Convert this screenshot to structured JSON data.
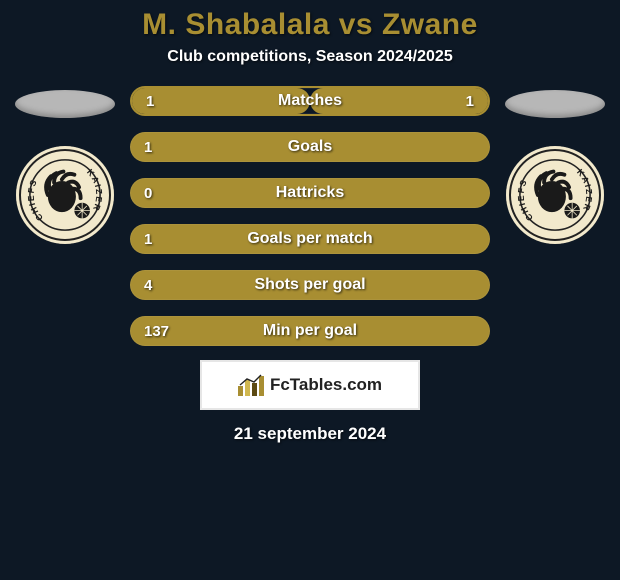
{
  "title": {
    "left": "M. Shabalala",
    "sep": " vs ",
    "right": "Zwane",
    "color": "#a88e32",
    "fontsize": 30
  },
  "subtitle": {
    "text": "Club competitions, Season 2024/2025",
    "fontsize": 16
  },
  "player_ellipse_color": "#b7b7b7",
  "club": {
    "left_name": "Kaizer Chiefs",
    "right_name": "Kaizer Chiefs",
    "badge_bg": "#f2e9cc",
    "badge_ring": "#222222",
    "headdress_color": "#1a1a1a",
    "ball_color": "#1a1a1a"
  },
  "bars": {
    "track_full_color": "#a88e32",
    "track_split_border": "#a88e32",
    "label_fontsize": 16,
    "value_fontsize": 15,
    "rows": [
      {
        "label": "Matches",
        "left": "1",
        "right": "1",
        "left_pct": 50,
        "right_pct": 50
      },
      {
        "label": "Goals",
        "left": "1",
        "right": "",
        "left_pct": 100,
        "right_pct": 0
      },
      {
        "label": "Hattricks",
        "left": "0",
        "right": "",
        "left_pct": 100,
        "right_pct": 0
      },
      {
        "label": "Goals per match",
        "left": "1",
        "right": "",
        "left_pct": 100,
        "right_pct": 0
      },
      {
        "label": "Shots per goal",
        "left": "4",
        "right": "",
        "left_pct": 100,
        "right_pct": 0
      },
      {
        "label": "Min per goal",
        "left": "137",
        "right": "",
        "left_pct": 100,
        "right_pct": 0
      }
    ]
  },
  "watermark": {
    "text": "FcTables.com",
    "bar_colors": [
      "#a88e32",
      "#d1b84f",
      "#5c4a14",
      "#a88e32"
    ]
  },
  "date": {
    "text": "21 september 2024",
    "fontsize": 17
  },
  "background_color": "#0d1825"
}
